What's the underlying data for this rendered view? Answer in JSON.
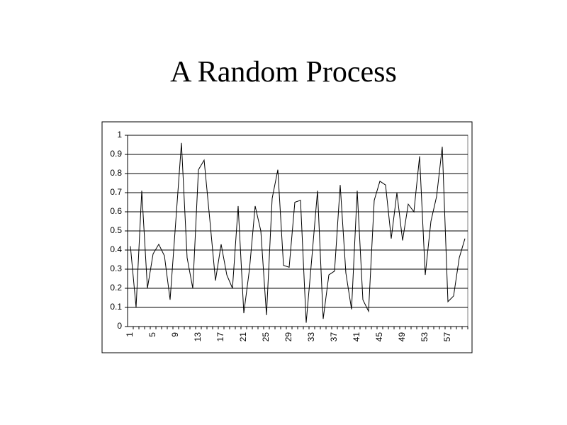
{
  "chart_data": {
    "type": "line",
    "title": "A Random Process",
    "categories": [
      1,
      null,
      null,
      null,
      5,
      null,
      null,
      null,
      9,
      null,
      null,
      null,
      13,
      null,
      null,
      null,
      17,
      null,
      null,
      null,
      21,
      null,
      null,
      null,
      25,
      null,
      null,
      null,
      29,
      null,
      null,
      null,
      33,
      null,
      null,
      null,
      37,
      null,
      null,
      null,
      41,
      null,
      null,
      null,
      45,
      null,
      null,
      null,
      49,
      null,
      null,
      null,
      53,
      null,
      null,
      null,
      57,
      null,
      null,
      null
    ],
    "values": [
      0.42,
      0.1,
      0.71,
      0.2,
      0.38,
      0.43,
      0.37,
      0.14,
      0.55,
      0.96,
      0.36,
      0.2,
      0.82,
      0.87,
      0.56,
      0.24,
      0.43,
      0.27,
      0.2,
      0.63,
      0.07,
      0.3,
      0.63,
      0.5,
      0.06,
      0.67,
      0.82,
      0.32,
      0.31,
      0.65,
      0.66,
      0.02,
      0.36,
      0.71,
      0.04,
      0.27,
      0.29,
      0.74,
      0.28,
      0.09,
      0.71,
      0.14,
      0.08,
      0.66,
      0.76,
      0.74,
      0.46,
      0.7,
      0.45,
      0.64,
      0.6,
      0.89,
      0.27,
      0.55,
      0.68,
      0.94,
      0.13,
      0.16,
      0.36,
      0.46
    ],
    "color": "#000000",
    "ylim": [
      0,
      1
    ],
    "yticks": [
      0,
      0.1,
      0.2,
      0.3,
      0.4,
      0.5,
      0.6,
      0.7,
      0.8,
      0.9,
      1
    ],
    "grid": true
  }
}
